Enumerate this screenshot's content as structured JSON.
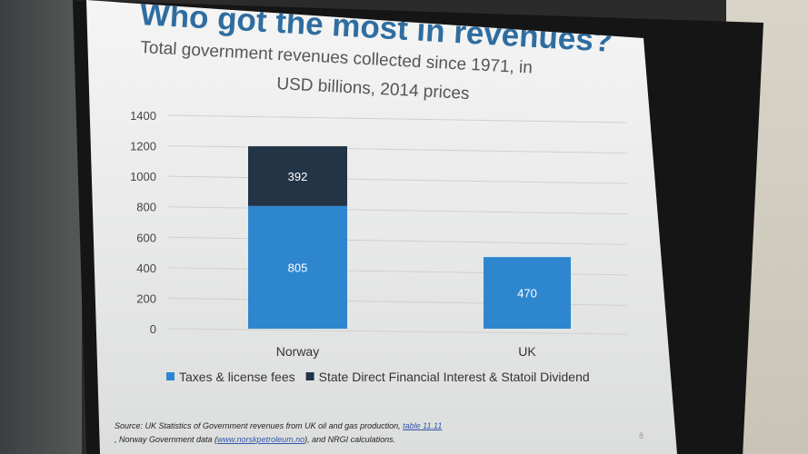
{
  "slide": {
    "title": "Who got the most in revenues?",
    "subtitle_line1": "Total government revenues collected since 1971, in",
    "subtitle_line2": "USD billions, 2014 prices",
    "source_prefix": "Source: UK Statistics of Government revenues from UK oil and gas production, ",
    "source_link1": "table 11.11",
    "source_mid": ", Norway Government data (",
    "source_link2": "www.norskpetroleum.no",
    "source_suffix": "), and NRGI calculations.",
    "page_number": "8"
  },
  "chart_data": {
    "type": "bar",
    "stacked": true,
    "categories": [
      "Norway",
      "UK"
    ],
    "series": [
      {
        "name": "Taxes & license fees",
        "values": [
          805,
          470
        ],
        "color": "#2e86cf"
      },
      {
        "name": "State Direct Financial Interest & Statoil Dividend",
        "values": [
          392,
          0
        ],
        "color": "#243447"
      }
    ],
    "yticks": [
      "0",
      "200",
      "400",
      "600",
      "800",
      "1000",
      "1200",
      "1400"
    ],
    "ylim": [
      0,
      1400
    ],
    "grid": true,
    "legend": "bottom"
  }
}
